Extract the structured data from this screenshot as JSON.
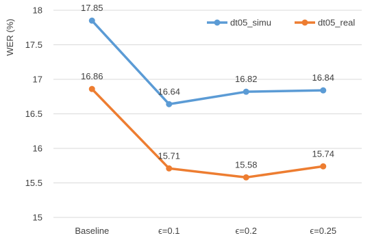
{
  "chart_data": {
    "type": "line",
    "ylabel": "WER (%)",
    "xlabel": "",
    "title": "",
    "categories": [
      "Baseline",
      "ϵ=0.1",
      "ϵ=0.2",
      "ϵ=0.25"
    ],
    "ylim": [
      15,
      18
    ],
    "yticks": [
      "15",
      "15.5",
      "16",
      "16.5",
      "17",
      "17.5",
      "18"
    ],
    "ytick_values": [
      15,
      15.5,
      16,
      16.5,
      17,
      17.5,
      18
    ],
    "grid": "horizontal",
    "legend_position": "top-right",
    "series": [
      {
        "name": "dt05_simu",
        "color": "#5B9BD5",
        "values": [
          17.85,
          16.64,
          16.82,
          16.84
        ],
        "labels": [
          "17.85",
          "16.64",
          "16.82",
          "16.84"
        ]
      },
      {
        "name": "dt05_real",
        "color": "#ED7D31",
        "values": [
          16.86,
          15.71,
          15.58,
          15.74
        ],
        "labels": [
          "16.86",
          "15.71",
          "15.58",
          "15.74"
        ]
      }
    ]
  }
}
